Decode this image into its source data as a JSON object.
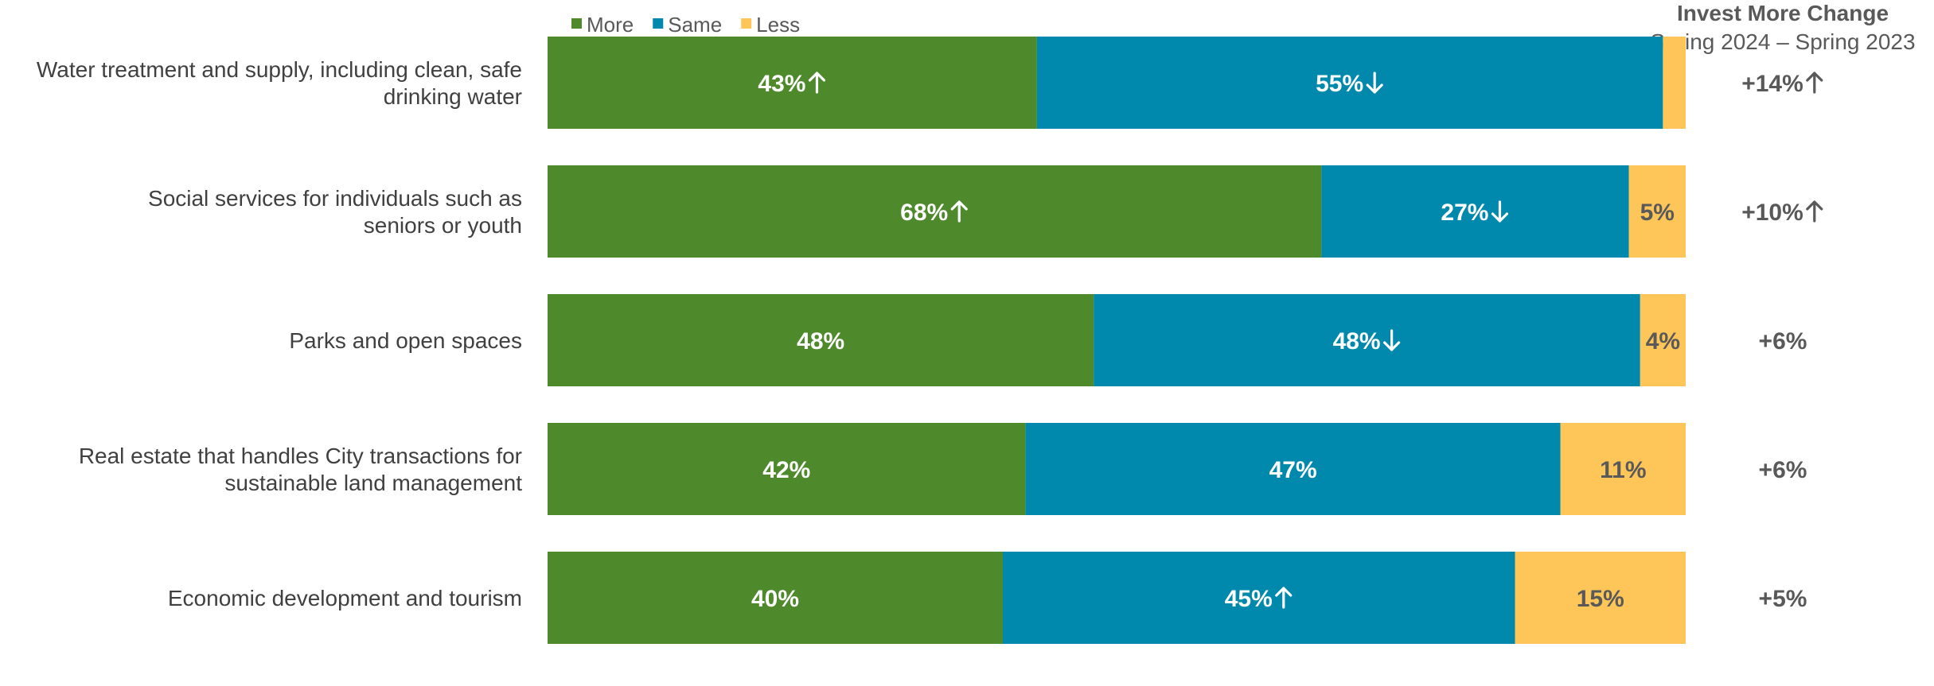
{
  "chart_data": {
    "type": "bar",
    "orientation": "horizontal",
    "stacked": true,
    "categories": [
      [
        "Water treatment and supply, including clean, safe",
        "drinking water"
      ],
      [
        "Social services for individuals such as",
        "seniors or youth"
      ],
      [
        "Parks and open spaces"
      ],
      [
        "Real estate that handles City transactions for",
        "sustainable land management"
      ],
      [
        "Economic development and tourism"
      ]
    ],
    "series": [
      {
        "name": "More",
        "color": "#4e8a2b",
        "values": [
          43,
          68,
          48,
          42,
          40
        ],
        "labels": [
          "43%",
          "68%",
          "48%",
          "42%",
          "40%"
        ],
        "trend": [
          "up",
          "up",
          "",
          "",
          ""
        ]
      },
      {
        "name": "Same",
        "color": "#0088ad",
        "values": [
          55,
          27,
          48,
          47,
          45
        ],
        "labels": [
          "55%",
          "27%",
          "48%",
          "47%",
          "45%"
        ],
        "trend": [
          "down",
          "down",
          "down",
          "",
          "up"
        ]
      },
      {
        "name": "Less",
        "color": "#fec558",
        "values": [
          2,
          5,
          4,
          11,
          15
        ],
        "labels": [
          "",
          "5%",
          "4%",
          "11%",
          "15%"
        ],
        "trend": [
          "",
          "",
          "",
          "",
          ""
        ]
      }
    ],
    "change_header": {
      "title": "Invest More Change",
      "subtitle": "Spring 2024 – Spring 2023"
    },
    "change": [
      {
        "label": "+14%",
        "trend": "up"
      },
      {
        "label": "+10%",
        "trend": "up"
      },
      {
        "label": "+6%",
        "trend": ""
      },
      {
        "label": "+6%",
        "trend": ""
      },
      {
        "label": "+5%",
        "trend": ""
      }
    ],
    "xlim": [
      0,
      100
    ],
    "legend": "top-left",
    "grid": false
  }
}
